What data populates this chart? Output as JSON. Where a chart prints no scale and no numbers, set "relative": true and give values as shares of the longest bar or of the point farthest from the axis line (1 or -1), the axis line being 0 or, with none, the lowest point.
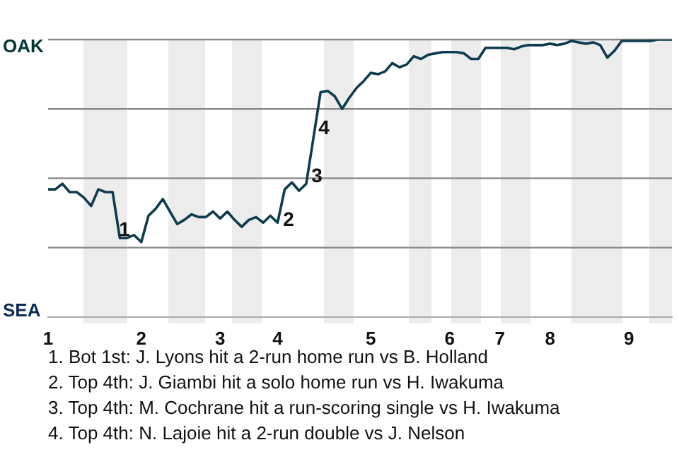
{
  "chart_data": {
    "type": "line",
    "relative": true,
    "categories": [
      "1",
      null,
      null,
      null,
      null,
      null,
      null,
      null,
      null,
      null,
      null,
      null,
      null,
      "2",
      null,
      null,
      null,
      null,
      null,
      null,
      null,
      null,
      null,
      null,
      "3",
      null,
      null,
      null,
      null,
      null,
      null,
      null,
      "4",
      null,
      null,
      null,
      null,
      null,
      null,
      null,
      null,
      null,
      null,
      null,
      null,
      "5",
      null,
      null,
      null,
      null,
      null,
      null,
      null,
      null,
      null,
      null,
      "6",
      null,
      null,
      null,
      null,
      null,
      null,
      "7",
      null,
      null,
      null,
      null,
      null,
      null,
      "8",
      null,
      null,
      null,
      null,
      null,
      null,
      null,
      null,
      null,
      null,
      "9",
      null,
      null,
      null,
      null,
      null,
      null
    ],
    "series": [
      {
        "color": "#0d3b4f",
        "values": [
          0.46,
          0.46,
          0.48,
          0.45,
          0.45,
          0.43,
          0.4,
          0.46,
          0.45,
          0.45,
          0.285,
          0.285,
          0.295,
          0.27,
          0.365,
          0.39,
          0.425,
          0.38,
          0.335,
          0.35,
          0.37,
          0.36,
          0.36,
          0.38,
          0.355,
          0.38,
          0.35,
          0.325,
          0.35,
          0.36,
          0.34,
          0.365,
          0.34,
          0.46,
          0.485,
          0.455,
          0.48,
          0.645,
          0.81,
          0.815,
          0.795,
          0.75,
          0.79,
          0.825,
          0.85,
          0.88,
          0.875,
          0.885,
          0.915,
          0.9,
          0.91,
          0.94,
          0.93,
          0.945,
          0.95,
          0.955,
          0.955,
          0.955,
          0.95,
          0.93,
          0.93,
          0.97,
          0.97,
          0.97,
          0.97,
          0.965,
          0.975,
          0.98,
          0.98,
          0.98,
          0.985,
          0.98,
          0.985,
          0.995,
          0.99,
          0.985,
          0.99,
          0.98,
          0.935,
          0.96,
          0.995,
          0.995,
          0.995,
          0.995,
          0.995,
          1,
          1,
          1
        ]
      }
    ],
    "ref_lines": [
      {
        "axis": "y",
        "value": 0.25,
        "color": "#888888"
      },
      {
        "axis": "y",
        "value": 0.5,
        "color": "#888888"
      },
      {
        "axis": "y",
        "value": 0.75,
        "color": "#888888"
      }
    ],
    "legend": false,
    "marker": "none",
    "annotations": [
      "OAK",
      "SEA",
      "1",
      "2",
      "3",
      "4",
      "1. Bot 1st: J. Lyons hit a 2-run home run vs B. Holland",
      "2. Top 4th: J. Giambi hit a solo home run vs H. Iwakuma",
      "3. Top 4th: M. Cochrane hit a run-scoring single vs H. Iwakuma",
      "4. Top 4th: N. Lajoie hit a 2-run double vs J. Nelson"
    ]
  }
}
